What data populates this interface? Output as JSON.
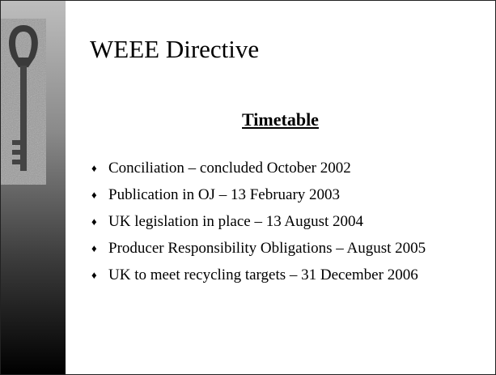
{
  "slide": {
    "title": "WEEE Directive",
    "subtitle": "Timetable",
    "bullets": [
      "Conciliation – concluded October 2002",
      "Publication in OJ – 13 February 2003",
      "UK legislation in place – 13 August 2004",
      "Producer Responsibility Obligations – August 2005",
      "UK to meet recycling targets – 31 December 2006"
    ]
  }
}
